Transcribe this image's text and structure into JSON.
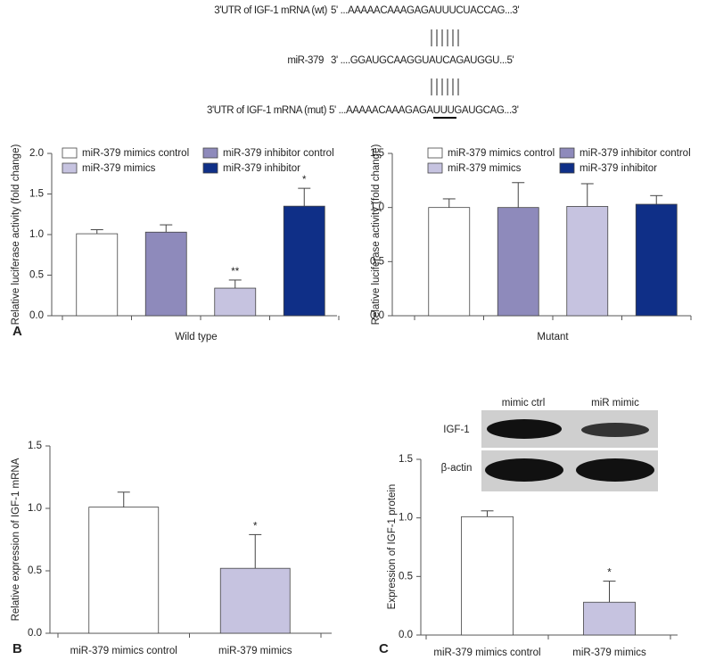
{
  "alignment": [
    {
      "label": "3'UTR of IGF-1 mRNA (wt)",
      "sequence": "5' ...AAAAACAAAGAGAUUUCUACCAG...3'"
    },
    {
      "label": "miR-379",
      "sequence": "3' ....GGAUGCAAGGUAUCAGAUGGU...5'"
    },
    {
      "label": "3'UTR of IGF-1 mRNA (mut)",
      "sequence": "5' ...AAAAACAAAGAGAUUUGAUGCAG...3'"
    }
  ],
  "blot": {
    "lanes": [
      "mimic ctrl",
      "miR mimic"
    ],
    "rows": [
      "IGF-1",
      "β-actin"
    ]
  },
  "chart_data": [
    {
      "type": "bar",
      "panel_label": "A",
      "xlabel": "Wild type",
      "ylabel": "Relative luciferase activity (fold change)",
      "categories": [
        null
      ],
      "series": [
        {
          "name": "miR-379 mimics control",
          "color": "#ffffff",
          "values": [
            1.01
          ],
          "errors": [
            0.05
          ]
        },
        {
          "name": "miR-379 inhibitor control",
          "color": "#8e8abb",
          "values": [
            1.03
          ],
          "errors": [
            0.09
          ]
        },
        {
          "name": "miR-379 mimics",
          "color": "#c6c3e0",
          "values": [
            0.34
          ],
          "errors": [
            0.1
          ],
          "significance": [
            "**"
          ]
        },
        {
          "name": "miR-379 inhibitor",
          "color": "#0f2f87",
          "values": [
            1.35
          ],
          "errors": [
            0.22
          ],
          "significance": [
            "*"
          ]
        }
      ],
      "ylim": [
        0,
        2
      ],
      "yticks": [
        {
          "value": 0,
          "label": "0.0"
        },
        {
          "value": 0.5,
          "label": "0.5"
        },
        {
          "value": 1,
          "label": "1.0"
        },
        {
          "value": 1.5,
          "label": "1.5"
        },
        {
          "value": 2,
          "label": "2.0"
        }
      ]
    },
    {
      "type": "bar",
      "xlabel": "Mutant",
      "ylabel": "Relative luciferase activity (fold change)",
      "categories": [
        null
      ],
      "series": [
        {
          "name": "miR-379 mimics control",
          "color": "#ffffff",
          "values": [
            1.0
          ],
          "errors": [
            0.08
          ]
        },
        {
          "name": "miR-379 inhibitor control",
          "color": "#8e8abb",
          "values": [
            1.0
          ],
          "errors": [
            0.23
          ]
        },
        {
          "name": "miR-379 mimics",
          "color": "#c6c3e0",
          "values": [
            1.01
          ],
          "errors": [
            0.21
          ]
        },
        {
          "name": "miR-379 inhibitor",
          "color": "#0f2f87",
          "values": [
            1.03
          ],
          "errors": [
            0.08
          ]
        }
      ],
      "ylim": [
        0,
        1.5
      ],
      "yticks": [
        {
          "value": 0,
          "label": "0.0"
        },
        {
          "value": 0.5,
          "label": "0.5"
        },
        {
          "value": 1,
          "label": "1.0"
        },
        {
          "value": 1.5,
          "label": "1.5"
        }
      ]
    },
    {
      "type": "bar",
      "panel_label": "B",
      "ylabel": "Relative expression of IGF-1 mRNA",
      "categories": [
        "miR-379 mimics control",
        "miR-379 mimics"
      ],
      "values": [
        1.01,
        0.52
      ],
      "errors": [
        0.12,
        0.27
      ],
      "significance": [
        null,
        "*"
      ],
      "colors": [
        "#ffffff",
        "#c6c3e0"
      ],
      "ylim": [
        0,
        1.5
      ],
      "yticks": [
        {
          "value": 0,
          "label": "0.0"
        },
        {
          "value": 0.5,
          "label": "0.5"
        },
        {
          "value": 1,
          "label": "1.0"
        },
        {
          "value": 1.5,
          "label": "1.5"
        }
      ]
    },
    {
      "type": "bar",
      "panel_label": "C",
      "ylabel": "Expression of IGF-1 protein",
      "categories": [
        "miR-379 mimics control",
        "miR-379 mimics"
      ],
      "values": [
        1.01,
        0.28
      ],
      "errors": [
        0.05,
        0.18
      ],
      "significance": [
        null,
        "*"
      ],
      "colors": [
        "#ffffff",
        "#c6c3e0"
      ],
      "ylim": [
        0,
        1.5
      ],
      "yticks": [
        {
          "value": 0,
          "label": "0.0"
        },
        {
          "value": 0.5,
          "label": "0.5"
        },
        {
          "value": 1,
          "label": "1.0"
        },
        {
          "value": 1.5,
          "label": "1.5"
        }
      ]
    }
  ]
}
